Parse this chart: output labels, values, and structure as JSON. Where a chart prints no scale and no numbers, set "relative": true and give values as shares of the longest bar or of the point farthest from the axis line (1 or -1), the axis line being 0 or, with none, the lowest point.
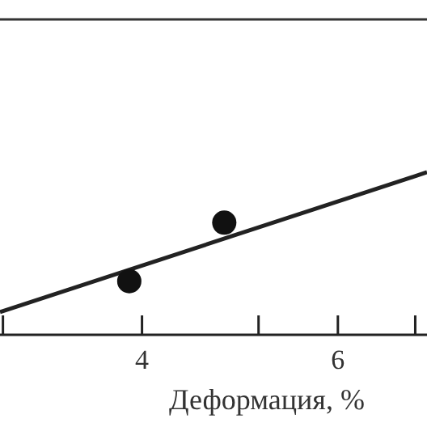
{
  "chart_data": {
    "type": "scatter",
    "xlabel": "Деформация, %",
    "relative": true,
    "xlim": [
      2.55,
      6.91
    ],
    "xticks": [
      {
        "value": 2.58,
        "label": null
      },
      4,
      {
        "value": 5.19,
        "label": null
      },
      6,
      {
        "value": 6.79,
        "label": null
      }
    ],
    "grid": false,
    "series": [
      {
        "color": "#111111",
        "marker": "circle",
        "x": [
          3.87,
          4.84
        ],
        "values": [
          0.33,
          0.69
        ]
      },
      {
        "type": "line",
        "color": "#222222",
        "line_style": "solid",
        "x": [
          2.55,
          6.91
        ],
        "values": [
          0.14,
          1.0
        ]
      }
    ]
  }
}
